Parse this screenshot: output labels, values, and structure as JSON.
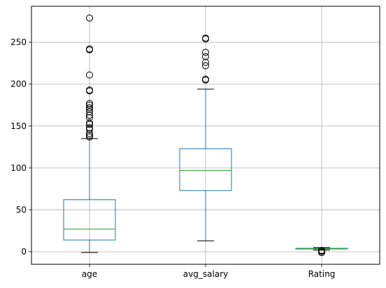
{
  "chart_data": {
    "type": "box",
    "title": "",
    "xlabel": "",
    "ylabel": "",
    "categories": [
      "age",
      "avg_salary",
      "Rating"
    ],
    "ylim": [
      -15,
      293
    ],
    "yticks": [
      0,
      50,
      100,
      150,
      200,
      250
    ],
    "grid": true,
    "colors": {
      "box": "#1f77b4",
      "median": "#2ca02c",
      "whisker": "#000000",
      "grid": "#b0b0b0"
    },
    "boxes": [
      {
        "name": "age",
        "whislo": -1,
        "q1": 14,
        "med": 27,
        "q3": 62,
        "whishi": 135,
        "fliers": [
          137,
          139,
          141,
          146,
          148,
          152,
          154,
          160,
          163,
          167,
          170,
          172,
          175,
          177,
          192,
          193,
          211,
          241,
          242,
          279
        ]
      },
      {
        "name": "avg_salary",
        "whislo": 13,
        "q1": 73,
        "med": 97,
        "q3": 123,
        "whishi": 194,
        "fliers": [
          205,
          206,
          222,
          226,
          233,
          238,
          254,
          255
        ]
      },
      {
        "name": "Rating",
        "whislo": 2.0,
        "q1": 3.3,
        "med": 3.7,
        "q3": 4.1,
        "whishi": 5.0,
        "fliers": [
          -1,
          0.5,
          1.0,
          1.5
        ]
      }
    ]
  }
}
